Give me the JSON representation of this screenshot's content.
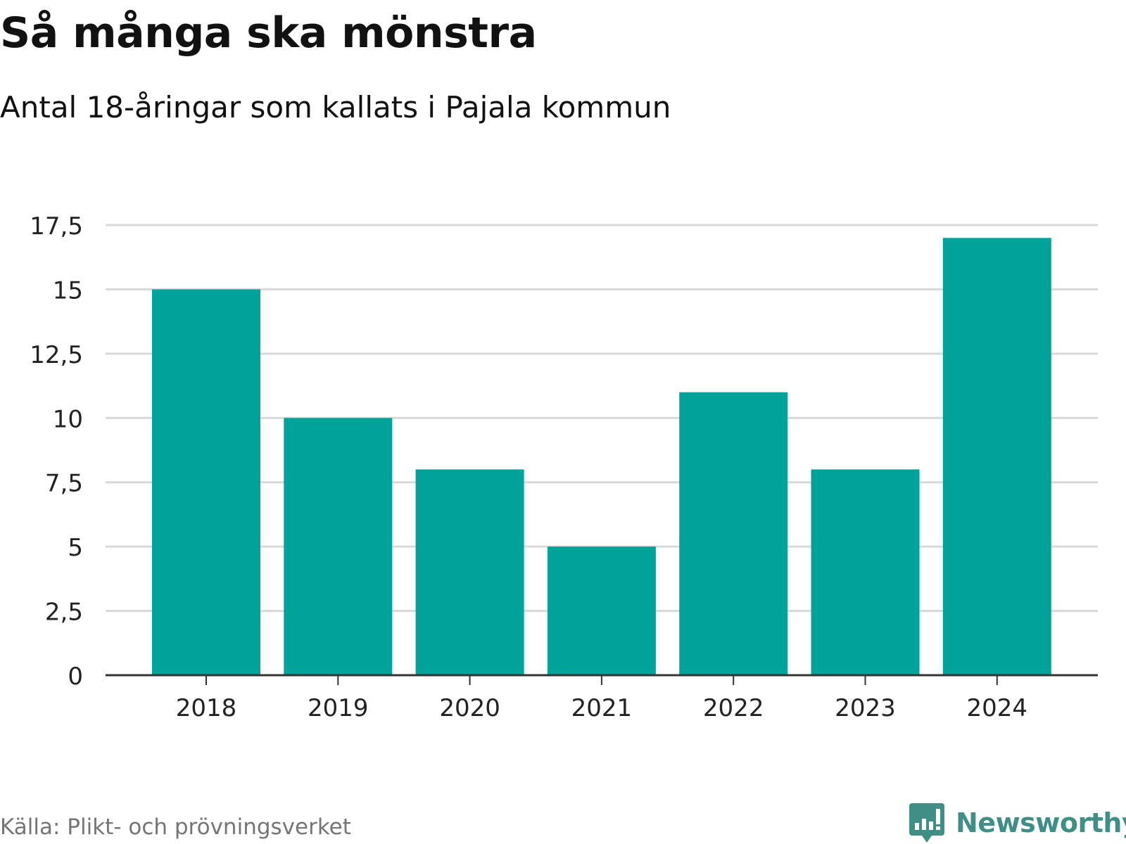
{
  "header": {
    "title": "Så många ska mönstra",
    "subtitle": "Antal 18-åringar som kallats i Pajala kommun"
  },
  "footer": {
    "source": "Källa: Plikt- och prövningsverket",
    "brand": "Newsworthy",
    "brand_icon": "bar-chart-speech-bubble-icon"
  },
  "colors": {
    "bar": "#00a39a",
    "grid": "#d9d9d9",
    "axis": "#333333",
    "tick_text": "#222222",
    "brand": "#3f8f86"
  },
  "chart_data": {
    "type": "bar",
    "categories": [
      "2018",
      "2019",
      "2020",
      "2021",
      "2022",
      "2023",
      "2024"
    ],
    "values": [
      15,
      10,
      8,
      5,
      11,
      8,
      17
    ],
    "ylim": [
      0,
      17.5
    ],
    "yticks": [
      0,
      2.5,
      5,
      7.5,
      10,
      12.5,
      15,
      17.5
    ],
    "ytick_labels": [
      "0",
      "2,5",
      "5",
      "7,5",
      "10",
      "12,5",
      "15",
      "17,5"
    ],
    "grid": true,
    "legend": "none",
    "xlabel": "",
    "ylabel": ""
  }
}
